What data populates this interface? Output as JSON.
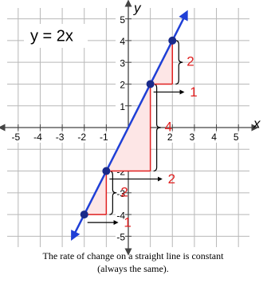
{
  "chart_data": {
    "type": "line",
    "title": "y = 2x",
    "x_label": "x",
    "y_label": "y",
    "caption": [
      "The rate of change on a straight line is constant",
      "(always the same)."
    ],
    "xlim": [
      -5.5,
      5.5
    ],
    "ylim": [
      -5.5,
      5.5
    ],
    "xticks": [
      -5,
      -4,
      -3,
      -2,
      -1,
      1,
      2,
      3,
      4,
      5
    ],
    "yticks": [
      -5,
      -4,
      -3,
      -2,
      -1,
      1,
      2,
      3,
      4,
      5
    ],
    "grid": true,
    "line": {
      "color": "#1f3fd6",
      "x": [
        -2.5,
        2.6
      ],
      "values": [
        -5,
        5.2
      ]
    },
    "points": {
      "color": "#1a2a8a",
      "x": [
        -2,
        -1,
        1,
        2
      ],
      "values": [
        -4,
        -2,
        2,
        4
      ]
    },
    "step_color": "#e02020",
    "steps": [
      {
        "x": -2,
        "y": -4,
        "run": 1,
        "rise": 2
      },
      {
        "x": -1,
        "y": -2,
        "run": 2,
        "rise": 4
      },
      {
        "x": 1,
        "y": 2,
        "run": 1,
        "rise": 2
      }
    ]
  }
}
